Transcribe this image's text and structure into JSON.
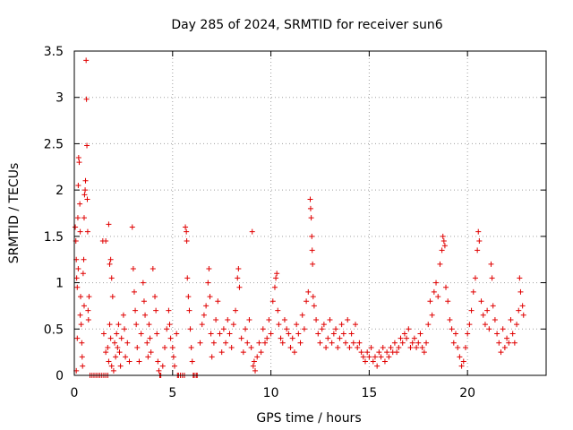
{
  "chart_data": {
    "type": "scatter",
    "title": "Day 285 of 2024, SRMTID for receiver sun6",
    "xlabel": "GPS time / hours",
    "ylabel": "SRMTID / TECUs",
    "xlim": [
      0,
      24
    ],
    "ylim": [
      0,
      3.5
    ],
    "xticks": [
      0,
      5,
      10,
      15,
      20
    ],
    "yticks": [
      0,
      0.5,
      1,
      1.5,
      2,
      2.5,
      3,
      3.5
    ],
    "xtick_labels": [
      "0",
      "5",
      "10",
      "15",
      "20"
    ],
    "ytick_labels": [
      "0",
      "0.5",
      "1",
      "1.5",
      "2",
      "2.5",
      "3",
      "3.5"
    ],
    "grid": true,
    "marker": "+",
    "color": "#e00000",
    "series": [
      {
        "name": "sun6",
        "points": [
          [
            0.05,
            1.6
          ],
          [
            0.08,
            1.45
          ],
          [
            0.1,
            1.25
          ],
          [
            0.12,
            1.05
          ],
          [
            0.15,
            0.95
          ],
          [
            0.18,
            1.7
          ],
          [
            0.2,
            2.05
          ],
          [
            0.22,
            2.35
          ],
          [
            0.25,
            2.3
          ],
          [
            0.28,
            1.85
          ],
          [
            0.3,
            1.55
          ],
          [
            0.32,
            0.85
          ],
          [
            0.35,
            0.55
          ],
          [
            0.38,
            0.35
          ],
          [
            0.4,
            0.2
          ],
          [
            0.42,
            0.1
          ],
          [
            0.45,
            1.1
          ],
          [
            0.48,
            1.25
          ],
          [
            0.5,
            1.7
          ],
          [
            0.52,
            1.95
          ],
          [
            0.55,
            2.0
          ],
          [
            0.57,
            2.1
          ],
          [
            0.6,
            3.4
          ],
          [
            0.62,
            2.98
          ],
          [
            0.64,
            2.48
          ],
          [
            0.66,
            1.9
          ],
          [
            0.68,
            1.55
          ],
          [
            0.7,
            0.7
          ],
          [
            0.72,
            0.6
          ],
          [
            0.75,
            0.85
          ],
          [
            0.5,
            0.75
          ],
          [
            0.3,
            0.65
          ],
          [
            0.2,
            1.15
          ],
          [
            0.15,
            0.4
          ],
          [
            0.1,
            0.05
          ],
          [
            0.8,
            0.0
          ],
          [
            0.9,
            0.0
          ],
          [
            1.0,
            0.0
          ],
          [
            1.1,
            0.0
          ],
          [
            1.2,
            0.0
          ],
          [
            1.3,
            0.0
          ],
          [
            1.4,
            0.0
          ],
          [
            1.5,
            0.0
          ],
          [
            1.6,
            0.0
          ],
          [
            1.7,
            0.0
          ],
          [
            1.45,
            1.45
          ],
          [
            1.6,
            1.45
          ],
          [
            1.75,
            1.63
          ],
          [
            1.8,
            1.2
          ],
          [
            1.85,
            1.25
          ],
          [
            1.9,
            1.05
          ],
          [
            1.95,
            0.85
          ],
          [
            1.5,
            0.45
          ],
          [
            1.6,
            0.25
          ],
          [
            1.7,
            0.3
          ],
          [
            1.75,
            0.15
          ],
          [
            1.8,
            0.55
          ],
          [
            1.85,
            0.4
          ],
          [
            1.9,
            0.1
          ],
          [
            2.0,
            0.05
          ],
          [
            2.05,
            0.35
          ],
          [
            2.1,
            0.2
          ],
          [
            2.15,
            0.45
          ],
          [
            2.2,
            0.3
          ],
          [
            2.25,
            0.55
          ],
          [
            2.3,
            0.25
          ],
          [
            2.35,
            0.1
          ],
          [
            2.4,
            0.4
          ],
          [
            2.5,
            0.65
          ],
          [
            2.55,
            0.5
          ],
          [
            2.6,
            0.2
          ],
          [
            2.7,
            0.35
          ],
          [
            2.8,
            0.15
          ],
          [
            2.95,
            1.6
          ],
          [
            3.0,
            1.15
          ],
          [
            3.05,
            0.9
          ],
          [
            3.1,
            0.7
          ],
          [
            3.15,
            0.55
          ],
          [
            3.2,
            0.3
          ],
          [
            3.3,
            0.15
          ],
          [
            3.4,
            0.45
          ],
          [
            3.5,
            1.0
          ],
          [
            3.55,
            0.8
          ],
          [
            3.6,
            0.65
          ],
          [
            3.7,
            0.35
          ],
          [
            3.75,
            0.2
          ],
          [
            3.8,
            0.55
          ],
          [
            3.85,
            0.4
          ],
          [
            3.9,
            0.25
          ],
          [
            4.0,
            1.15
          ],
          [
            4.1,
            0.85
          ],
          [
            4.15,
            0.7
          ],
          [
            4.2,
            0.45
          ],
          [
            4.25,
            0.15
          ],
          [
            4.3,
            0.05
          ],
          [
            4.35,
            0.0
          ],
          [
            4.4,
            0.0
          ],
          [
            4.5,
            0.1
          ],
          [
            4.6,
            0.3
          ],
          [
            4.7,
            0.5
          ],
          [
            4.8,
            0.7
          ],
          [
            4.85,
            0.55
          ],
          [
            4.9,
            0.4
          ],
          [
            5.0,
            0.3
          ],
          [
            5.05,
            0.2
          ],
          [
            5.1,
            0.1
          ],
          [
            5.2,
            0.45
          ],
          [
            5.25,
            0.0
          ],
          [
            5.3,
            0.0
          ],
          [
            5.4,
            0.0
          ],
          [
            5.5,
            0.0
          ],
          [
            5.6,
            0.0
          ],
          [
            5.65,
            1.6
          ],
          [
            5.7,
            1.55
          ],
          [
            5.72,
            1.45
          ],
          [
            5.75,
            1.05
          ],
          [
            5.8,
            0.85
          ],
          [
            5.85,
            0.7
          ],
          [
            5.9,
            0.5
          ],
          [
            5.95,
            0.3
          ],
          [
            6.0,
            0.15
          ],
          [
            6.05,
            0.0
          ],
          [
            6.1,
            0.0
          ],
          [
            6.2,
            0.0
          ],
          [
            6.25,
            0.0
          ],
          [
            6.4,
            0.35
          ],
          [
            6.5,
            0.55
          ],
          [
            6.6,
            0.65
          ],
          [
            6.7,
            0.75
          ],
          [
            6.8,
            1.0
          ],
          [
            6.85,
            1.15
          ],
          [
            6.9,
            0.85
          ],
          [
            6.95,
            0.45
          ],
          [
            7.0,
            0.2
          ],
          [
            7.1,
            0.35
          ],
          [
            7.2,
            0.6
          ],
          [
            7.3,
            0.8
          ],
          [
            7.4,
            0.45
          ],
          [
            7.5,
            0.25
          ],
          [
            7.6,
            0.5
          ],
          [
            7.7,
            0.35
          ],
          [
            7.8,
            0.6
          ],
          [
            7.9,
            0.45
          ],
          [
            8.0,
            0.3
          ],
          [
            8.1,
            0.55
          ],
          [
            8.2,
            0.7
          ],
          [
            8.3,
            1.05
          ],
          [
            8.35,
            1.15
          ],
          [
            8.4,
            0.95
          ],
          [
            8.5,
            0.4
          ],
          [
            8.6,
            0.25
          ],
          [
            8.7,
            0.5
          ],
          [
            8.8,
            0.35
          ],
          [
            8.9,
            0.6
          ],
          [
            9.0,
            0.3
          ],
          [
            9.05,
            1.55
          ],
          [
            9.1,
            0.1
          ],
          [
            9.15,
            0.15
          ],
          [
            9.2,
            0.05
          ],
          [
            9.3,
            0.2
          ],
          [
            9.4,
            0.35
          ],
          [
            9.5,
            0.25
          ],
          [
            9.6,
            0.5
          ],
          [
            9.7,
            0.35
          ],
          [
            9.8,
            0.4
          ],
          [
            9.9,
            0.6
          ],
          [
            10.0,
            0.45
          ],
          [
            10.1,
            0.8
          ],
          [
            10.2,
            0.95
          ],
          [
            10.25,
            1.05
          ],
          [
            10.3,
            1.1
          ],
          [
            10.35,
            0.7
          ],
          [
            10.4,
            0.55
          ],
          [
            10.5,
            0.4
          ],
          [
            10.6,
            0.35
          ],
          [
            10.7,
            0.6
          ],
          [
            10.8,
            0.5
          ],
          [
            10.9,
            0.45
          ],
          [
            11.0,
            0.3
          ],
          [
            11.1,
            0.4
          ],
          [
            11.2,
            0.25
          ],
          [
            11.3,
            0.55
          ],
          [
            11.4,
            0.45
          ],
          [
            11.5,
            0.35
          ],
          [
            11.6,
            0.65
          ],
          [
            11.7,
            0.5
          ],
          [
            11.8,
            0.8
          ],
          [
            11.9,
            0.9
          ],
          [
            12.0,
            1.9
          ],
          [
            12.02,
            1.8
          ],
          [
            12.05,
            1.7
          ],
          [
            12.08,
            1.5
          ],
          [
            12.1,
            1.35
          ],
          [
            12.12,
            1.2
          ],
          [
            12.15,
            0.85
          ],
          [
            12.2,
            0.75
          ],
          [
            12.3,
            0.6
          ],
          [
            12.4,
            0.45
          ],
          [
            12.5,
            0.35
          ],
          [
            12.6,
            0.5
          ],
          [
            12.7,
            0.55
          ],
          [
            12.8,
            0.3
          ],
          [
            12.9,
            0.4
          ],
          [
            13.0,
            0.6
          ],
          [
            13.1,
            0.35
          ],
          [
            13.2,
            0.45
          ],
          [
            13.3,
            0.5
          ],
          [
            13.4,
            0.3
          ],
          [
            13.5,
            0.4
          ],
          [
            13.6,
            0.55
          ],
          [
            13.7,
            0.45
          ],
          [
            13.8,
            0.35
          ],
          [
            13.9,
            0.6
          ],
          [
            14.0,
            0.3
          ],
          [
            14.1,
            0.45
          ],
          [
            14.2,
            0.35
          ],
          [
            14.3,
            0.55
          ],
          [
            14.4,
            0.3
          ],
          [
            14.5,
            0.35
          ],
          [
            14.6,
            0.25
          ],
          [
            14.7,
            0.2
          ],
          [
            14.8,
            0.15
          ],
          [
            14.9,
            0.25
          ],
          [
            15.0,
            0.2
          ],
          [
            15.1,
            0.3
          ],
          [
            15.2,
            0.15
          ],
          [
            15.3,
            0.2
          ],
          [
            15.4,
            0.1
          ],
          [
            15.5,
            0.25
          ],
          [
            15.6,
            0.2
          ],
          [
            15.7,
            0.3
          ],
          [
            15.8,
            0.15
          ],
          [
            15.9,
            0.25
          ],
          [
            16.0,
            0.2
          ],
          [
            16.1,
            0.3
          ],
          [
            16.2,
            0.25
          ],
          [
            16.3,
            0.35
          ],
          [
            16.4,
            0.25
          ],
          [
            16.5,
            0.3
          ],
          [
            16.6,
            0.4
          ],
          [
            16.7,
            0.35
          ],
          [
            16.8,
            0.45
          ],
          [
            16.9,
            0.4
          ],
          [
            17.0,
            0.5
          ],
          [
            17.1,
            0.3
          ],
          [
            17.2,
            0.35
          ],
          [
            17.3,
            0.4
          ],
          [
            17.4,
            0.3
          ],
          [
            17.5,
            0.35
          ],
          [
            17.6,
            0.45
          ],
          [
            17.7,
            0.3
          ],
          [
            17.8,
            0.25
          ],
          [
            17.9,
            0.35
          ],
          [
            18.0,
            0.55
          ],
          [
            18.1,
            0.8
          ],
          [
            18.2,
            0.65
          ],
          [
            18.3,
            0.9
          ],
          [
            18.4,
            1.0
          ],
          [
            18.5,
            0.85
          ],
          [
            18.6,
            1.2
          ],
          [
            18.7,
            1.35
          ],
          [
            18.75,
            1.5
          ],
          [
            18.8,
            1.45
          ],
          [
            18.85,
            1.4
          ],
          [
            18.9,
            0.95
          ],
          [
            19.0,
            0.8
          ],
          [
            19.1,
            0.6
          ],
          [
            19.2,
            0.5
          ],
          [
            19.3,
            0.35
          ],
          [
            19.4,
            0.45
          ],
          [
            19.5,
            0.3
          ],
          [
            19.6,
            0.2
          ],
          [
            19.7,
            0.1
          ],
          [
            19.8,
            0.15
          ],
          [
            19.9,
            0.3
          ],
          [
            20.0,
            0.45
          ],
          [
            20.1,
            0.55
          ],
          [
            20.2,
            0.7
          ],
          [
            20.3,
            0.9
          ],
          [
            20.4,
            1.05
          ],
          [
            20.5,
            1.35
          ],
          [
            20.55,
            1.55
          ],
          [
            20.6,
            1.45
          ],
          [
            20.7,
            0.8
          ],
          [
            20.8,
            0.65
          ],
          [
            20.9,
            0.55
          ],
          [
            21.0,
            0.7
          ],
          [
            21.1,
            0.5
          ],
          [
            21.2,
            1.2
          ],
          [
            21.25,
            1.05
          ],
          [
            21.3,
            0.75
          ],
          [
            21.4,
            0.6
          ],
          [
            21.5,
            0.45
          ],
          [
            21.6,
            0.35
          ],
          [
            21.7,
            0.25
          ],
          [
            21.8,
            0.5
          ],
          [
            21.9,
            0.3
          ],
          [
            22.0,
            0.4
          ],
          [
            22.1,
            0.35
          ],
          [
            22.2,
            0.6
          ],
          [
            22.3,
            0.45
          ],
          [
            22.4,
            0.35
          ],
          [
            22.5,
            0.55
          ],
          [
            22.6,
            0.7
          ],
          [
            22.65,
            1.05
          ],
          [
            22.7,
            0.9
          ],
          [
            22.8,
            0.75
          ],
          [
            22.85,
            0.65
          ]
        ]
      }
    ]
  }
}
